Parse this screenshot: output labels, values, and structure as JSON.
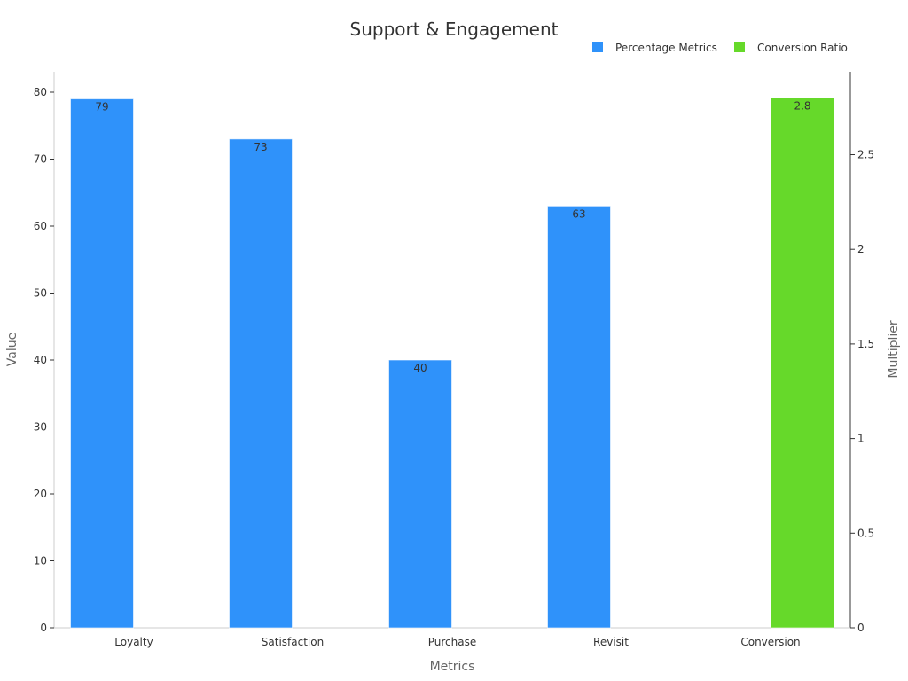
{
  "chart_data": {
    "type": "bar",
    "title": "Support & Engagement",
    "xlabel": "Metrics",
    "ylabel": "Value",
    "y2label": "Multiplier",
    "categories": [
      "Loyalty",
      "Satisfaction",
      "Purchase",
      "Revisit",
      "Conversion"
    ],
    "ylim": [
      0,
      83
    ],
    "y2lim": [
      0,
      2.94
    ],
    "yticks": [
      0,
      10,
      20,
      30,
      40,
      50,
      60,
      70,
      80
    ],
    "y2ticks": [
      0,
      0.5,
      1,
      1.5,
      2,
      2.5
    ],
    "y2tick_labels": [
      "0",
      "0.5",
      "1",
      "1.5",
      "2",
      "2.5"
    ],
    "legend_position": "top-right",
    "grid": false,
    "series": [
      {
        "name": "Percentage Metrics",
        "axis": "left",
        "color": "#2f92fa",
        "values": [
          79,
          73,
          40,
          63,
          null
        ],
        "labels": [
          "79",
          "73",
          "40",
          "63",
          ""
        ]
      },
      {
        "name": "Conversion Ratio",
        "axis": "right",
        "color": "#66d92a",
        "values": [
          null,
          null,
          null,
          null,
          2.8
        ],
        "labels": [
          "",
          "",
          "",
          "",
          "2.8"
        ]
      }
    ]
  }
}
